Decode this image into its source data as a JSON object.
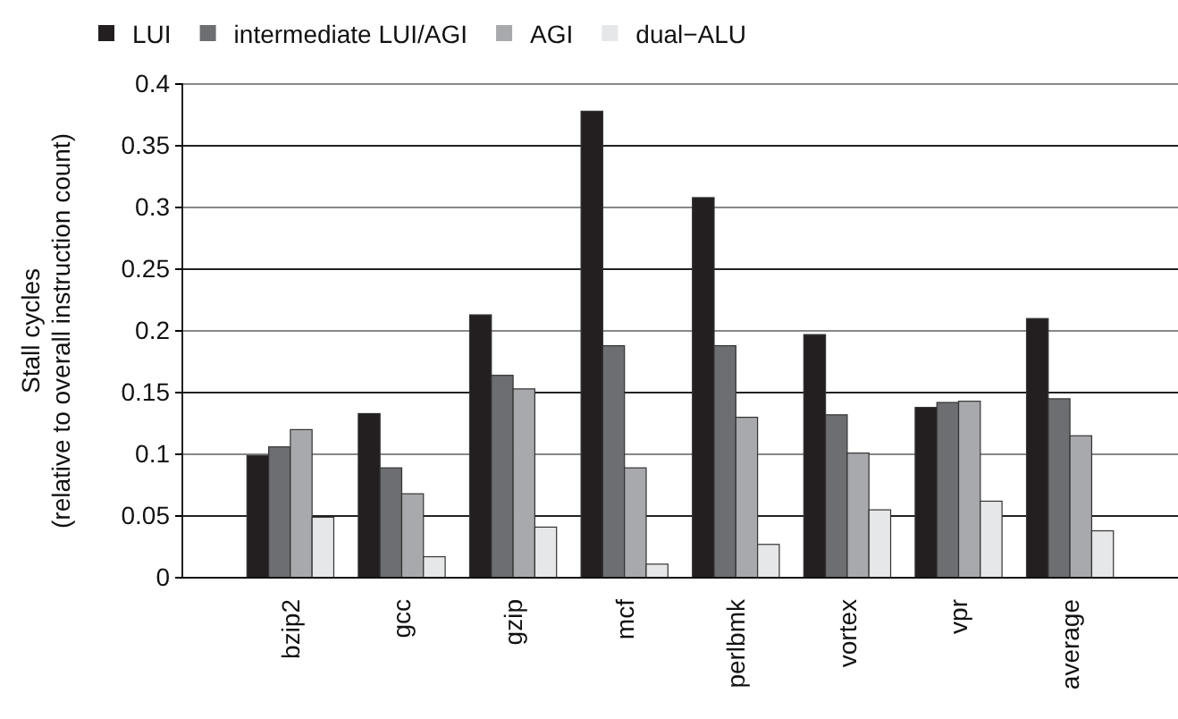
{
  "chart_data": {
    "type": "bar",
    "ylabel": "Stall cycles\n(relative to overall instruction count)",
    "categories": [
      "bzip2",
      "gcc",
      "gzip",
      "mcf",
      "perlbmk",
      "vortex",
      "vpr",
      "average"
    ],
    "series": [
      {
        "name": "LUI",
        "color": "#231f20",
        "values": [
          0.099,
          0.133,
          0.213,
          0.378,
          0.308,
          0.197,
          0.138,
          0.21
        ]
      },
      {
        "name": "intermediate LUI/AGI",
        "color": "#6d6e71",
        "values": [
          0.106,
          0.089,
          0.164,
          0.188,
          0.188,
          0.132,
          0.142,
          0.145
        ]
      },
      {
        "name": "AGI",
        "color": "#a7a9ac",
        "values": [
          0.12,
          0.068,
          0.153,
          0.089,
          0.13,
          0.101,
          0.143,
          0.115
        ]
      },
      {
        "name": "dual−ALU",
        "color": "#e6e7e8",
        "values": [
          0.049,
          0.017,
          0.041,
          0.011,
          0.027,
          0.055,
          0.062,
          0.038
        ]
      }
    ],
    "ylim": [
      0,
      0.4
    ],
    "yticks": [
      0,
      0.05,
      0.1,
      0.15,
      0.2,
      0.25,
      0.3,
      0.35,
      0.4
    ],
    "grid": "y",
    "legend": "top left"
  }
}
